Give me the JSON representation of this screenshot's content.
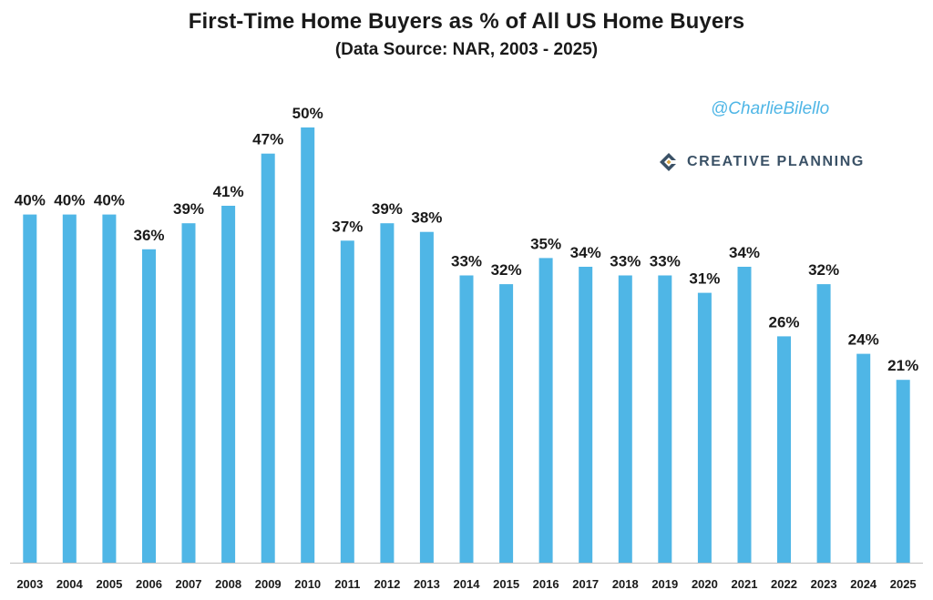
{
  "chart_data": {
    "type": "bar",
    "title": "First-Time Home Buyers as % of All US Home Buyers",
    "subtitle": "(Data Source: NAR, 2003 - 2025)",
    "xlabel": "",
    "ylabel": "",
    "ylim": [
      0,
      50
    ],
    "grid": false,
    "bar_color": "#4fb6e6",
    "categories": [
      "2003",
      "2004",
      "2005",
      "2006",
      "2007",
      "2008",
      "2009",
      "2010",
      "2011",
      "2012",
      "2013",
      "2014",
      "2015",
      "2016",
      "2017",
      "2018",
      "2019",
      "2020",
      "2021",
      "2022",
      "2023",
      "2024",
      "2025"
    ],
    "values": [
      40,
      40,
      40,
      36,
      39,
      41,
      47,
      50,
      37,
      39,
      38,
      33,
      32,
      35,
      34,
      33,
      33,
      31,
      34,
      26,
      32,
      24,
      21
    ],
    "data_labels": [
      "40%",
      "40%",
      "40%",
      "36%",
      "39%",
      "41%",
      "47%",
      "50%",
      "37%",
      "39%",
      "38%",
      "33%",
      "32%",
      "35%",
      "34%",
      "33%",
      "33%",
      "31%",
      "34%",
      "26%",
      "32%",
      "24%",
      "21%"
    ]
  },
  "watermark": {
    "handle": "@CharlieBilello",
    "brand": "CREATIVE PLANNING",
    "handle_color": "#4fb6e6",
    "brand_color": "#3a5166"
  }
}
